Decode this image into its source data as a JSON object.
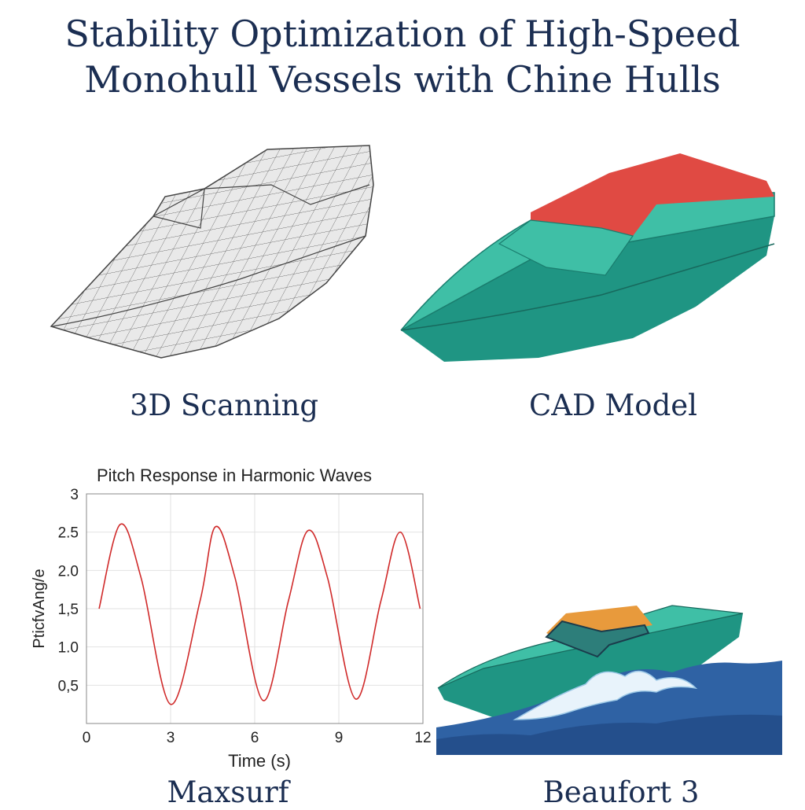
{
  "title": {
    "line1": "Stability Optimization of High-Speed",
    "line2": "Monohull Vessels with Chine Hulls"
  },
  "panels": {
    "scan_caption": "3D Scanning",
    "cad_caption": "CAD Model",
    "chart_caption": "Maxsurf",
    "wave_caption": "Beaufort 3"
  },
  "colors": {
    "title": "#1b2e52",
    "hull_teal": "#3fbfa6",
    "hull_dark": "#1f9583",
    "cad_deck": "#e04a43",
    "cabin_orange": "#e89a3c",
    "sea": "#2f62a4",
    "curve": "#d02a2a"
  },
  "chart_data": {
    "type": "line",
    "title": "Pitch Response in Harmonic Waves",
    "xlabel": "Time (s)",
    "ylabel": "PticfvAng/e",
    "xlim": [
      0,
      12
    ],
    "ylim": [
      0,
      3
    ],
    "xticks": [
      0,
      3,
      6,
      9,
      12
    ],
    "xtick_labels": [
      "0",
      "3",
      "6",
      "9",
      "12"
    ],
    "yticks": [
      0.5,
      1.0,
      1.5,
      2.0,
      2.5,
      3
    ],
    "ytick_labels": [
      "0,5",
      "1.0",
      "1,5",
      "2.0",
      "2.5",
      "3"
    ],
    "grid": true,
    "series": [
      {
        "x": [
          0.45,
          1.2,
          1.95,
          3.0,
          4.05,
          4.6,
          5.3,
          6.3,
          7.2,
          7.9,
          8.6,
          9.6,
          10.5,
          11.2,
          11.9
        ],
        "y": [
          1.5,
          2.6,
          1.9,
          0.25,
          1.6,
          2.57,
          1.9,
          0.3,
          1.6,
          2.52,
          1.9,
          0.32,
          1.6,
          2.5,
          1.5
        ]
      }
    ]
  }
}
